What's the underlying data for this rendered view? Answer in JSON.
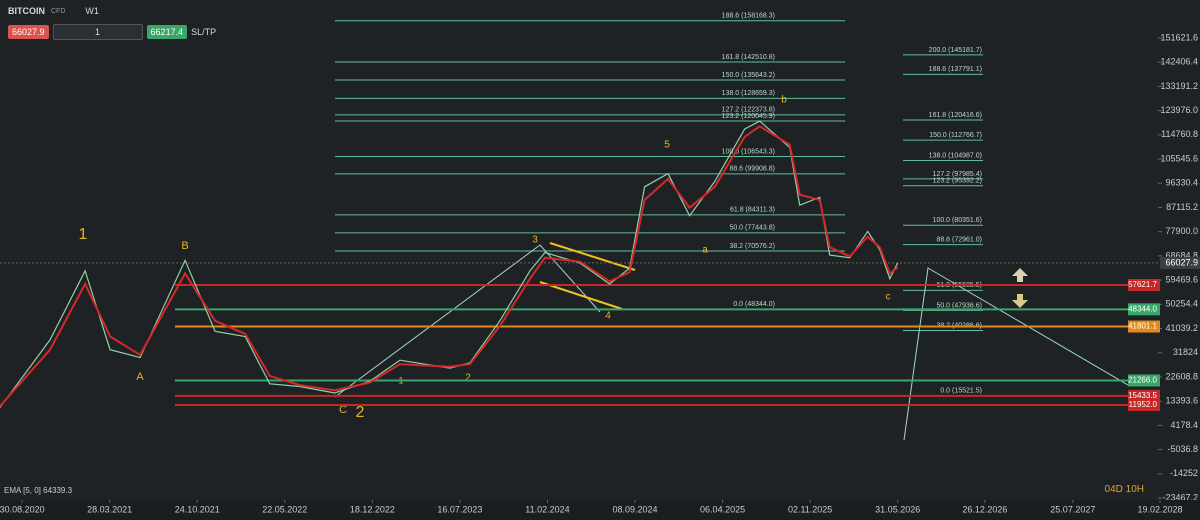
{
  "toolbar": {
    "symbol": "BITCOIN",
    "symbol_type": "CFD",
    "timeframe": "W1",
    "bid": "66027.9",
    "volume": "1",
    "ask": "66217.4",
    "sltp": "SL/TP"
  },
  "indicator": "EMA [5, 0] 64339.3",
  "countdown": "04D 10H",
  "chart_data": {
    "type": "candlestick-line",
    "xlim": [
      "2020-07-08",
      "2028-05-25"
    ],
    "ylim": [
      -26118.6,
      164181.4
    ],
    "xticks": [
      {
        "value": "2020-08-30",
        "label": "30.08.2020"
      },
      {
        "value": "2021-03-28",
        "label": "28.03.2021"
      },
      {
        "value": "2021-10-24",
        "label": "24.10.2021"
      },
      {
        "value": "2022-05-22",
        "label": "22.05.2022"
      },
      {
        "value": "2022-12-18",
        "label": "18.12.2022"
      },
      {
        "value": "2023-07-16",
        "label": "16.07.2023"
      },
      {
        "value": "2024-02-11",
        "label": "11.02.2024"
      },
      {
        "value": "2024-09-08",
        "label": "08.09.2024"
      },
      {
        "value": "2025-04-06",
        "label": "06.04.2025"
      },
      {
        "value": "2025-11-02",
        "label": "02.11.2025"
      },
      {
        "value": "2026-05-31",
        "label": "31.05.2026"
      },
      {
        "value": "2026-12-26",
        "label": "26.12.2026"
      },
      {
        "value": "2027-07-25",
        "label": "25.07.2027"
      },
      {
        "value": "2028-02-19",
        "label": "19.02.2028"
      }
    ],
    "yticks": [
      151621.6,
      142406.4,
      133191.2,
      {
        "value": 123976,
        "label": "123976.0"
      },
      114760.8,
      105545.6,
      96330.4,
      87115.2,
      {
        "value": 77900,
        "label": "77900.0"
      },
      68684.8,
      59469.6,
      50254.4,
      41039.2,
      31824,
      22608.8,
      13393.6,
      4178.4,
      -5036.8,
      -14252,
      -23467.2
    ],
    "x": [
      "2020-07-08",
      "2020-11-05",
      "2021-01-28",
      "2021-03-29",
      "2021-06-09",
      "2021-09-25",
      "2021-12-06",
      "2022-02-16",
      "2022-04-16",
      "2022-06-27",
      "2022-09-19",
      "2022-12-12",
      "2023-02-22",
      "2023-06-22",
      "2023-08-09",
      "2023-10-20",
      "2023-12-31",
      "2024-02-05",
      "2024-04-29",
      "2024-07-09",
      "2024-08-26",
      "2024-10-01",
      "2024-11-26",
      "2025-01-17",
      "2025-03-18",
      "2025-05-29",
      "2025-07-04",
      "2025-09-14",
      "2025-10-08",
      "2025-11-25",
      "2025-12-19",
      "2026-02-05",
      "2026-03-20",
      "2026-04-18",
      "2026-05-12",
      "2026-05-31"
    ],
    "series": [
      {
        "name": "Price",
        "color": "#8fd1a8",
        "values": [
          11000,
          36700,
          63000,
          33000,
          30000,
          67000,
          40000,
          38000,
          20000,
          19000,
          16500,
          21000,
          29000,
          26000,
          28000,
          44000,
          63000,
          70000,
          66000,
          58000,
          64000,
          95000,
          100000,
          84000,
          97000,
          117000,
          120000,
          110000,
          88000,
          91000,
          69000,
          68000,
          78000,
          71000,
          60000,
          66027.9
        ]
      },
      {
        "name": "EMA",
        "color": "#d62828",
        "values": [
          11500,
          33000,
          58000,
          38000,
          31000,
          62000,
          44000,
          39000,
          23000,
          19500,
          17500,
          20500,
          27500,
          26500,
          27500,
          42000,
          60000,
          68000,
          66500,
          59000,
          62500,
          90000,
          98000,
          87000,
          95000,
          114000,
          118000,
          111000,
          92000,
          90000,
          72000,
          68500,
          76000,
          72000,
          62000,
          64339.3
        ]
      }
    ],
    "last_price": 66027.9,
    "levels": [
      {
        "value": 57621.7,
        "color": "#c62828"
      },
      {
        "value": 48344,
        "label": "48344.0",
        "color": "#3aa66a"
      },
      {
        "value": 41801.1,
        "color": "#e08a1e"
      },
      {
        "value": 21266,
        "label": "21266.0",
        "color": "#3aa66a"
      },
      {
        "value": 15433.5,
        "color": "#c62828"
      },
      {
        "value": 11952,
        "label": "11952.0",
        "color": "#c62828"
      }
    ],
    "fib_left": [
      {
        "value": 158168.3,
        "label": "188.6 (158168.3)"
      },
      {
        "value": 142510.8,
        "label": "161.8 (142510.8)"
      },
      {
        "value": 135643.2,
        "label": "150.0 (135643.2)"
      },
      {
        "value": 128659.3,
        "label": "138.0 (128659.3)"
      },
      {
        "value": 122373.8,
        "label": "127.2 (122373.8)"
      },
      {
        "value": 120045.9,
        "label": "123.2 (120045.9)"
      },
      {
        "value": 106543.3,
        "label": "100.0 (106543.3)"
      },
      {
        "value": 99908.8,
        "label": "88.6 (99908.8)"
      },
      {
        "value": 84311.3,
        "label": "61.8 (84311.3)"
      },
      {
        "value": 77443.8,
        "label": "50.0 (77443.8)"
      },
      {
        "value": 70576.2,
        "label": "38.2 (70576.2)"
      },
      {
        "value": 48344,
        "label": "0.0 (48344.0)"
      }
    ],
    "fib_right": [
      {
        "value": 145181.7,
        "label": "200.0 (145181.7)"
      },
      {
        "value": 137791.1,
        "label": "188.6 (137791.1)"
      },
      {
        "value": 120416.6,
        "label": "161.8 (120416.6)"
      },
      {
        "value": 112766.7,
        "label": "150.0 (112766.7)"
      },
      {
        "value": 104987,
        "label": "138.0 (104987.0)"
      },
      {
        "value": 97985.4,
        "label": "127.2 (97985.4)"
      },
      {
        "value": 95392.2,
        "label": "123.2 (95392.2)"
      },
      {
        "value": 80351.6,
        "label": "100.0 (80351.6)"
      },
      {
        "value": 72961,
        "label": "88.6 (72961.0)"
      },
      {
        "value": 55585.5,
        "label": "61.8 (55585.5)"
      },
      {
        "value": 47936.6,
        "label": "50.0 (47936.6)"
      },
      {
        "value": 40286.6,
        "label": "38.2 (40286.6)"
      },
      {
        "value": 15521.5,
        "label": "0.0 (15521.5)"
      }
    ],
    "wave_labels": [
      "1",
      "B",
      "A",
      "C",
      "2",
      "1",
      "2",
      "3",
      "4",
      "5",
      "a",
      "b",
      "c"
    ]
  }
}
